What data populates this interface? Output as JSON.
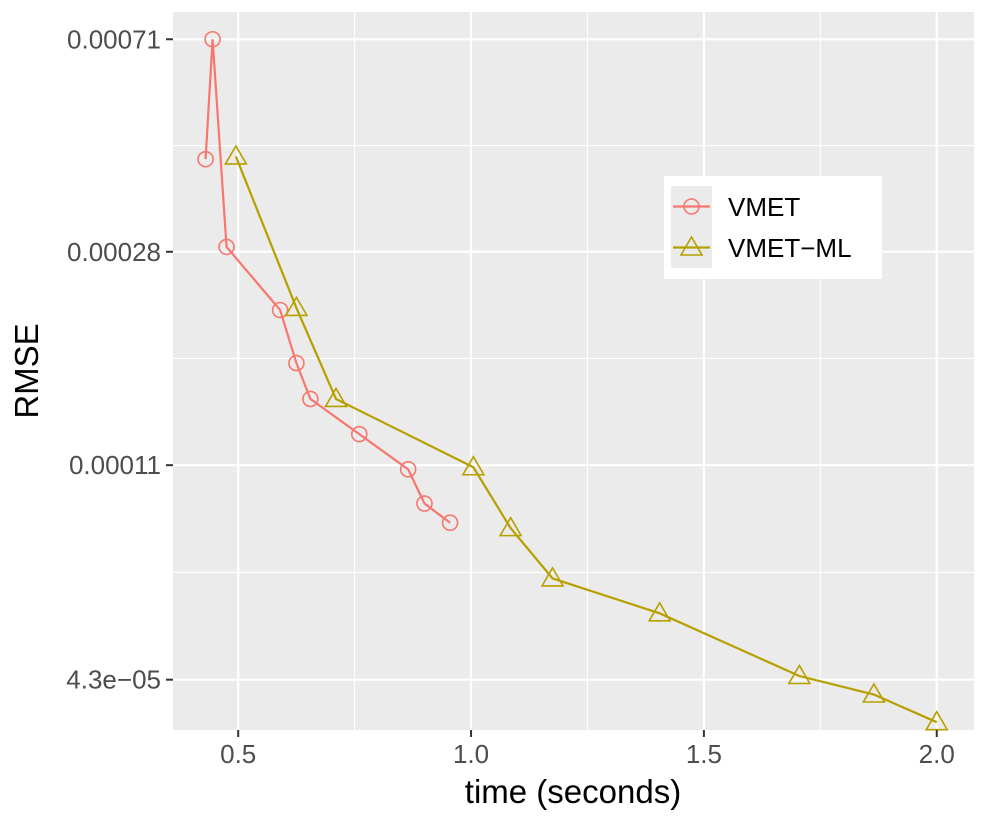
{
  "chart_data": {
    "type": "line",
    "title": "",
    "xlabel": "time (seconds)",
    "ylabel": "RMSE",
    "y_scale": "log10",
    "xlim": [
      0.36,
      2.08
    ],
    "ylim": [
      3.45e-05,
      0.0008
    ],
    "x_ticks": [
      0.5,
      1.0,
      1.5,
      2.0
    ],
    "x_tick_labels": [
      "0.5",
      "1.0",
      "1.5",
      "2.0"
    ],
    "y_ticks": [
      4.3e-05,
      0.00011,
      0.00028,
      0.00071
    ],
    "y_tick_labels": [
      "4.3e−05",
      "0.00011",
      "0.00028",
      "0.00071"
    ],
    "grid": true,
    "legend_position": "top-right",
    "series": [
      {
        "name": "VMET",
        "color": "#F8766D",
        "marker": "circle",
        "x": [
          0.43,
          0.445,
          0.475,
          0.59,
          0.625,
          0.655,
          0.76,
          0.865,
          0.9,
          0.955
        ],
        "y": [
          0.00042,
          0.00071,
          0.000286,
          0.000217,
          0.000172,
          0.000147,
          0.000126,
          0.000108,
          9.3e-05,
          8.55e-05
        ]
      },
      {
        "name": "VMET−ML",
        "color": "#B79F00",
        "marker": "triangle",
        "x": [
          0.495,
          0.625,
          0.71,
          1.005,
          1.085,
          1.175,
          1.405,
          1.705,
          1.865,
          2.0
        ],
        "y": [
          0.000425,
          0.000219,
          0.000147,
          0.000109,
          8.35e-05,
          6.7e-05,
          5.75e-05,
          4.37e-05,
          4.03e-05,
          3.57e-05
        ]
      }
    ]
  }
}
